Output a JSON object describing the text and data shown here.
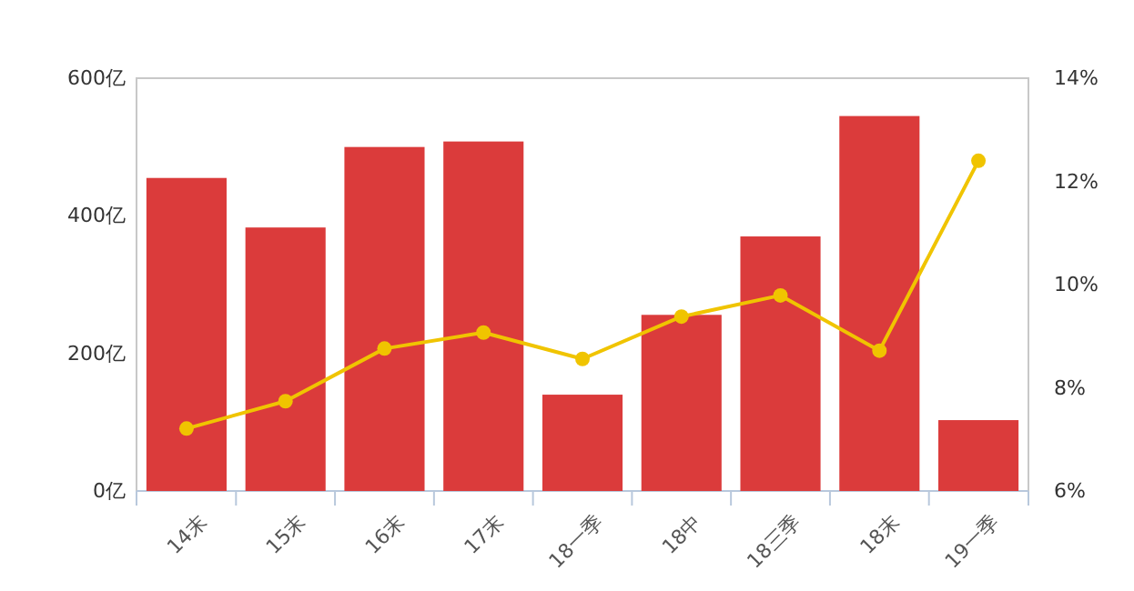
{
  "chart_data": {
    "type": "bar",
    "categories": [
      "14末",
      "15末",
      "16末",
      "17末",
      "18一季",
      "18中",
      "18三季",
      "18末",
      "19一季"
    ],
    "series": [
      {
        "color": "#db3b3b",
        "values": [
          455,
          383,
          500,
          508,
          140,
          256,
          370,
          545,
          103
        ]
      },
      {
        "type": "line",
        "axis": "y2",
        "color": "#f0c400",
        "marker": "circle",
        "values": [
          7.21,
          7.74,
          8.76,
          9.07,
          8.56,
          9.38,
          9.79,
          8.72,
          12.4
        ]
      }
    ],
    "ylim": [
      0,
      600
    ],
    "yticks": [
      {
        "value": 0,
        "label": "0亿"
      },
      {
        "value": 200,
        "label": "200亿"
      },
      {
        "value": 400,
        "label": "400亿"
      },
      {
        "value": 600,
        "label": "600亿"
      }
    ],
    "y2lim": [
      6,
      14
    ],
    "y2ticks": [
      {
        "value": 6,
        "label": "6%"
      },
      {
        "value": 8,
        "label": "8%"
      },
      {
        "value": 10,
        "label": "10%"
      },
      {
        "value": 12,
        "label": "12%"
      },
      {
        "value": 14,
        "label": "14%"
      }
    ],
    "grid": false,
    "legend": false
  }
}
